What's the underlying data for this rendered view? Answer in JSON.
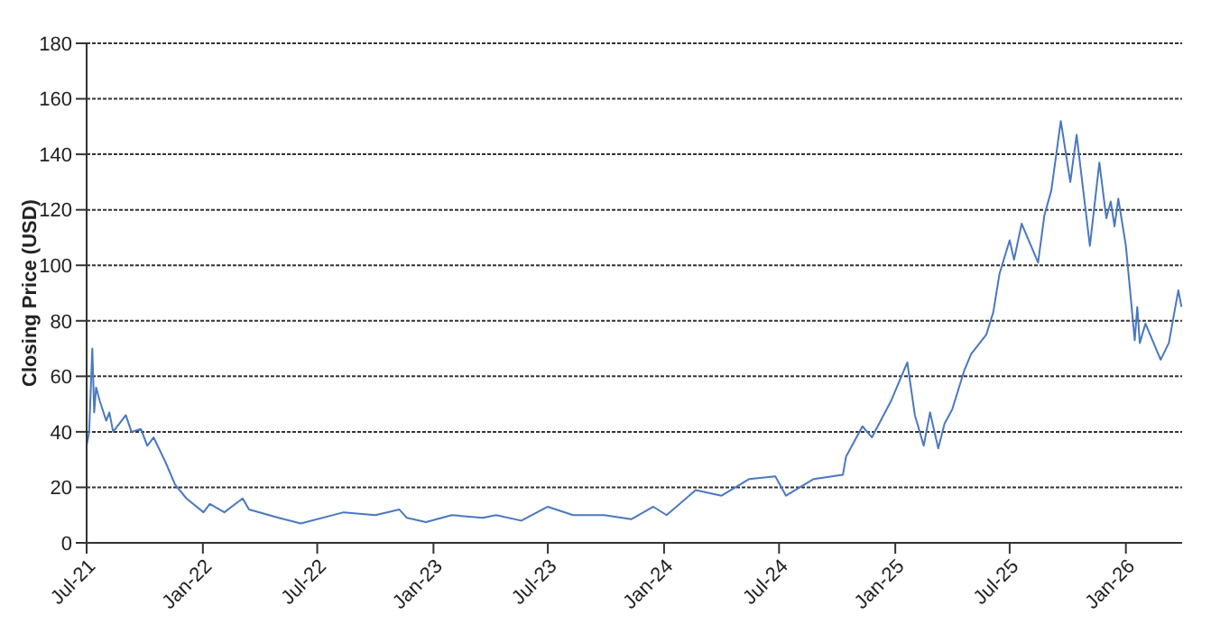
{
  "chart_data": {
    "type": "line",
    "ylabel": "Closing Price (USD)",
    "xlim": [
      "2021-07-01",
      "2026-03-31"
    ],
    "xticks": [
      {
        "value": "2021-07-01",
        "label": "Jul-21"
      },
      {
        "value": "2022-01-01",
        "label": "Jan-22"
      },
      {
        "value": "2022-07-01",
        "label": "Jul-22"
      },
      {
        "value": "2023-01-01",
        "label": "Jan-23"
      },
      {
        "value": "2023-07-01",
        "label": "Jul-23"
      },
      {
        "value": "2024-01-01",
        "label": "Jan-24"
      },
      {
        "value": "2024-07-01",
        "label": "Jul-24"
      },
      {
        "value": "2025-01-01",
        "label": "Jan-25"
      },
      {
        "value": "2025-07-01",
        "label": "Jul-25"
      },
      {
        "value": "2026-01-01",
        "label": "Jan-26"
      }
    ],
    "ylim": [
      0,
      180
    ],
    "yticks": [
      0,
      20,
      40,
      60,
      80,
      100,
      120,
      140,
      160,
      180
    ],
    "grid": "y",
    "marker": "none",
    "line_style": "solid",
    "x": [
      "2021-07-01",
      "2021-07-05",
      "2021-07-10",
      "2021-07-13",
      "2021-07-16",
      "2021-07-22",
      "2021-08-01",
      "2021-08-06",
      "2021-08-12",
      "2021-09-01",
      "2021-09-10",
      "2021-09-25",
      "2021-10-05",
      "2021-10-15",
      "2021-11-03",
      "2021-11-18",
      "2021-12-06",
      "2022-01-02",
      "2022-01-12",
      "2022-02-04",
      "2022-03-05",
      "2022-03-15",
      "2022-05-01",
      "2022-06-05",
      "2022-08-12",
      "2022-10-01",
      "2022-11-08",
      "2022-11-20",
      "2022-12-20",
      "2023-01-30",
      "2023-03-20",
      "2023-04-10",
      "2023-05-20",
      "2023-07-01",
      "2023-08-10",
      "2023-09-28",
      "2023-11-10",
      "2023-12-15",
      "2024-01-05",
      "2024-02-20",
      "2024-04-01",
      "2024-05-15",
      "2024-06-25",
      "2024-07-12",
      "2024-08-25",
      "2024-10-10",
      "2024-10-15",
      "2024-11-10",
      "2024-11-25",
      "2024-12-25",
      "2025-01-20",
      "2025-02-01",
      "2025-02-15",
      "2025-02-25",
      "2025-03-10",
      "2025-03-20",
      "2025-04-01",
      "2025-04-20",
      "2025-05-01",
      "2025-05-25",
      "2025-06-05",
      "2025-06-15",
      "2025-07-01",
      "2025-07-08",
      "2025-07-20",
      "2025-08-15",
      "2025-08-25",
      "2025-09-05",
      "2025-09-20",
      "2025-10-05",
      "2025-10-15",
      "2025-11-05",
      "2025-11-20",
      "2025-12-01",
      "2025-12-08",
      "2025-12-14",
      "2025-12-20",
      "2026-01-01",
      "2026-01-15",
      "2026-01-19",
      "2026-01-23",
      "2026-02-01",
      "2026-02-25",
      "2026-03-10",
      "2026-03-25",
      "2026-03-30"
    ],
    "series": [
      {
        "color": "#4a78c0",
        "values": [
          35,
          40,
          70,
          47,
          56,
          51,
          44,
          47,
          40,
          46,
          40,
          41,
          35,
          38,
          29,
          21,
          16,
          11,
          14,
          11,
          16,
          12,
          9,
          7,
          11,
          10,
          12,
          9,
          7.5,
          10,
          9,
          10,
          8,
          13,
          10,
          10,
          8.5,
          13,
          10,
          19,
          17,
          23,
          24,
          17,
          23,
          24.5,
          31,
          42,
          38,
          51,
          65,
          46,
          35,
          47,
          34,
          43,
          48,
          62,
          68,
          75,
          83,
          97,
          109,
          102,
          115,
          101,
          118,
          127,
          152,
          130,
          147,
          107,
          137,
          117,
          123,
          114,
          124,
          107,
          73,
          85,
          72,
          79,
          66,
          72,
          91,
          85
        ]
      }
    ]
  }
}
